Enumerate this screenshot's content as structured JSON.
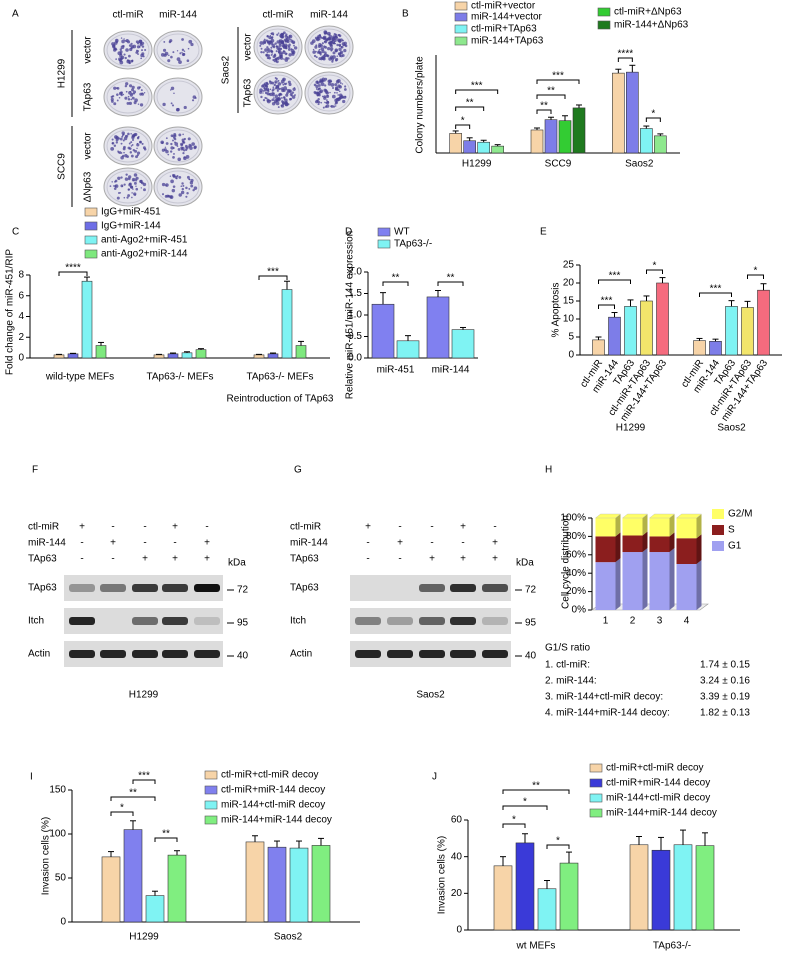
{
  "panel_a": {
    "label": "A",
    "columns": [
      "ctl-miR",
      "miR-144"
    ],
    "groups": [
      {
        "name": "H1299",
        "rows": [
          "vector",
          "TAp63"
        ]
      },
      {
        "name": "SCC9",
        "rows": [
          "vector",
          "ΔNp63"
        ]
      }
    ],
    "saos2": {
      "name": "Saos2",
      "columns": [
        "ctl-miR",
        "miR-144"
      ],
      "rows": [
        "vector",
        "TAp63"
      ]
    }
  },
  "chart_data": [
    {
      "type": "bar",
      "panel": "B",
      "ylabel": "Colony numbers/plate",
      "categories": [
        "H1299",
        "SCC9",
        "Saos2"
      ],
      "series": [
        {
          "name": "ctl-miR+vector",
          "color": "#f7d4a8",
          "values": [
            40,
            47,
            163
          ],
          "errors": [
            5,
            4,
            8
          ]
        },
        {
          "name": "miR-144+vector",
          "color": "#7d7de8",
          "values": [
            25,
            68,
            165
          ],
          "errors": [
            6,
            5,
            14
          ]
        },
        {
          "name": "ctl-miR+TAp63",
          "color": "#7ff3f3",
          "values": [
            22,
            null,
            50
          ],
          "errors": [
            4,
            null,
            5
          ]
        },
        {
          "name": "miR-144+TAp63",
          "color": "#8ee88e",
          "values": [
            14,
            null,
            35
          ],
          "errors": [
            3,
            null,
            4
          ]
        },
        {
          "name": "ctl-miR+ΔNp63",
          "color": "#33cc33",
          "values": [
            null,
            66,
            null
          ],
          "errors": [
            null,
            10,
            null
          ]
        },
        {
          "name": "miR-144+ΔNp63",
          "color": "#1f7a1f",
          "values": [
            null,
            92,
            null
          ],
          "errors": [
            null,
            6,
            null
          ]
        }
      ],
      "ylim": [
        0,
        200
      ],
      "annotations": [
        "*",
        "**",
        "***",
        "**",
        "**",
        "***",
        "****",
        "*"
      ]
    },
    {
      "type": "bar",
      "panel": "C",
      "ylabel": "Fold change of miR-451/RIP",
      "categories": [
        "wild-type MEFs",
        "TAp63-/- MEFs",
        "TAp63-/- MEFs"
      ],
      "note": "Reintroduction of TAp63",
      "series": [
        {
          "name": "IgG+miR-451",
          "color": "#f7d4a8",
          "values": [
            0.3,
            0.3,
            0.3
          ],
          "errors": [
            0.05,
            0.05,
            0.05
          ]
        },
        {
          "name": "IgG+miR-144",
          "color": "#6e6ee6",
          "values": [
            0.4,
            0.4,
            0.4
          ],
          "errors": [
            0.05,
            0.08,
            0.08
          ]
        },
        {
          "name": "anti-Ago2+miR-451",
          "color": "#7ff3f3",
          "values": [
            7.4,
            0.5,
            6.6
          ],
          "errors": [
            0.4,
            0.1,
            0.8
          ]
        },
        {
          "name": "anti-Ago2+miR-144",
          "color": "#7ee87e",
          "values": [
            1.2,
            0.8,
            1.2
          ],
          "errors": [
            0.3,
            0.1,
            0.4
          ]
        }
      ],
      "ylim": [
        0,
        8
      ],
      "yticks": [
        0,
        2,
        4,
        6,
        8
      ],
      "annotations": [
        "****",
        "***"
      ]
    },
    {
      "type": "bar",
      "panel": "D",
      "ylabel": "Relative miR-451/miR-144 expression",
      "categories": [
        "miR-451",
        "miR-144"
      ],
      "series": [
        {
          "name": "WT",
          "color": "#8080f0",
          "values": [
            1.25,
            1.42
          ],
          "errors": [
            0.27,
            0.15
          ]
        },
        {
          "name": "TAp63-/-",
          "color": "#7ff3f3",
          "values": [
            0.4,
            0.66
          ],
          "errors": [
            0.12,
            0.05
          ]
        }
      ],
      "ylim": [
        0,
        2
      ],
      "yticks": [
        {
          "value": 0,
          "label": "0.0"
        },
        {
          "value": 0.5,
          "label": "0.5"
        },
        {
          "value": 1,
          "label": "1.0"
        },
        {
          "value": 1.5,
          "label": "1.5"
        },
        {
          "value": 2,
          "label": "2.0"
        }
      ],
      "annotations": [
        "**",
        "**"
      ]
    },
    {
      "type": "bar",
      "panel": "E",
      "ylabel": "% Apoptosis",
      "categories": [
        "H1299",
        "Saos2"
      ],
      "series": [
        {
          "name": "ctl-miR",
          "color": "#f7d4a8",
          "values": [
            4.2,
            4
          ],
          "errors": [
            0.8,
            0.6
          ]
        },
        {
          "name": "miR-144",
          "color": "#7d7de8",
          "values": [
            10.5,
            3.8
          ],
          "errors": [
            1.3,
            0.6
          ]
        },
        {
          "name": "TAp63",
          "color": "#7ff3f3",
          "values": [
            13.5,
            13.5
          ],
          "errors": [
            1.8,
            1.6
          ]
        },
        {
          "name": "ctl-miR+TAp63",
          "color": "#f2e56b",
          "values": [
            15,
            13.2
          ],
          "errors": [
            1.4,
            1.7
          ]
        },
        {
          "name": "miR-144+TAp63",
          "color": "#f56b7e",
          "values": [
            20,
            18
          ],
          "errors": [
            1.5,
            1.8
          ]
        }
      ],
      "ylim": [
        0,
        25
      ],
      "yticks": [
        0,
        5,
        10,
        15,
        20,
        25
      ],
      "annotations": [
        "***",
        "***",
        "*",
        "***",
        "*"
      ]
    },
    {
      "type": "stacked_bar",
      "panel": "H",
      "ylabel": "Cell cycle distribution",
      "categories": [
        "1",
        "2",
        "3",
        "4"
      ],
      "series": [
        {
          "name": "G1",
          "color": "#a0a0f0",
          "values": [
            52,
            63,
            63,
            50
          ]
        },
        {
          "name": "S",
          "color": "#8b1e1e",
          "values": [
            28,
            18,
            17,
            28
          ]
        },
        {
          "name": "G2/M",
          "color": "#ffff66",
          "values": [
            20,
            19,
            20,
            22
          ]
        }
      ],
      "ylim": [
        0,
        100
      ],
      "yticks": [
        {
          "value": 0,
          "label": "0%"
        },
        {
          "value": 20,
          "label": "20%"
        },
        {
          "value": 40,
          "label": "40%"
        },
        {
          "value": 60,
          "label": "60%"
        },
        {
          "value": 80,
          "label": "80%"
        },
        {
          "value": 100,
          "label": "100%"
        }
      ]
    },
    {
      "type": "bar",
      "panel": "I",
      "ylabel": "Invasion cells (%)",
      "categories": [
        "H1299",
        "Saos2"
      ],
      "series": [
        {
          "name": "ctl-miR+ctl-miR decoy",
          "color": "#f7d4a8",
          "values": [
            74,
            91
          ],
          "errors": [
            6,
            7
          ]
        },
        {
          "name": "ctl-miR+miR-144 decoy",
          "color": "#8080ee",
          "values": [
            105,
            85
          ],
          "errors": [
            10,
            7
          ]
        },
        {
          "name": "miR-144+ctl-miR decoy",
          "color": "#7ff3f3",
          "values": [
            30,
            84
          ],
          "errors": [
            5,
            8
          ]
        },
        {
          "name": "miR-144+miR-144 decoy",
          "color": "#80ee80",
          "values": [
            76,
            87
          ],
          "errors": [
            5,
            8
          ]
        }
      ],
      "ylim": [
        0,
        150
      ],
      "yticks": [
        0,
        50,
        100,
        150
      ],
      "annotations": [
        "*",
        "**",
        "***",
        "**"
      ]
    },
    {
      "type": "bar",
      "panel": "J",
      "ylabel": "Invasion cells (%)",
      "categories": [
        "wt MEFs",
        "TAp63-/-"
      ],
      "series": [
        {
          "name": "ctl-miR+ctl-miR decoy",
          "color": "#f7d4a8",
          "values": [
            35,
            46.5
          ],
          "errors": [
            5,
            4.5
          ]
        },
        {
          "name": "ctl-miR+miR-144 decoy",
          "color": "#3a3ad8",
          "values": [
            47.5,
            43.5
          ],
          "errors": [
            5,
            7
          ]
        },
        {
          "name": "miR-144+ctl-miR decoy",
          "color": "#7ff3f3",
          "values": [
            22.5,
            46.5
          ],
          "errors": [
            4.5,
            8
          ]
        },
        {
          "name": "miR-144+miR-144 decoy",
          "color": "#80ee80",
          "values": [
            36.5,
            46
          ],
          "errors": [
            6,
            7
          ]
        }
      ],
      "ylim": [
        0,
        60
      ],
      "yticks": [
        0,
        20,
        40,
        60
      ],
      "annotations": [
        "**",
        "*",
        "*",
        "*"
      ]
    }
  ],
  "panel_f": {
    "label": "F",
    "conditions": [
      {
        "name": "ctl-miR",
        "signs": [
          "+",
          "-",
          "-",
          "+",
          "-"
        ]
      },
      {
        "name": "miR-144",
        "signs": [
          "-",
          "+",
          "-",
          "-",
          "+"
        ]
      },
      {
        "name": "TAp63",
        "signs": [
          "-",
          "-",
          "+",
          "+",
          "+"
        ]
      }
    ],
    "unit": "kDa",
    "blots": [
      {
        "name": "TAp63",
        "marker": "72"
      },
      {
        "name": "Itch",
        "marker": "95"
      },
      {
        "name": "Actin",
        "marker": "40"
      }
    ],
    "cell_line": "H1299"
  },
  "panel_g": {
    "label": "G",
    "conditions": [
      {
        "name": "ctl-miR",
        "signs": [
          "+",
          "-",
          "-",
          "+",
          "-"
        ]
      },
      {
        "name": "miR-144",
        "signs": [
          "-",
          "+",
          "-",
          "-",
          "+"
        ]
      },
      {
        "name": "TAp63",
        "signs": [
          "-",
          "-",
          "+",
          "+",
          "+"
        ]
      }
    ],
    "unit": "kDa",
    "blots": [
      {
        "name": "TAp63",
        "marker": "72"
      },
      {
        "name": "Itch",
        "marker": "95"
      },
      {
        "name": "Actin",
        "marker": "40"
      }
    ],
    "cell_line": "Saos2"
  },
  "g1s_table": {
    "title": "G1/S ratio",
    "rows": [
      [
        "1. ctl-miR:",
        "1.74 ± 0.15"
      ],
      [
        "2. miR-144:",
        "3.24 ± 0.16"
      ],
      [
        "3. miR-144+ctl-miR decoy:",
        "3.39 ± 0.19"
      ],
      [
        "4. miR-144+miR-144 decoy:",
        "1.82 ± 0.13"
      ]
    ]
  }
}
